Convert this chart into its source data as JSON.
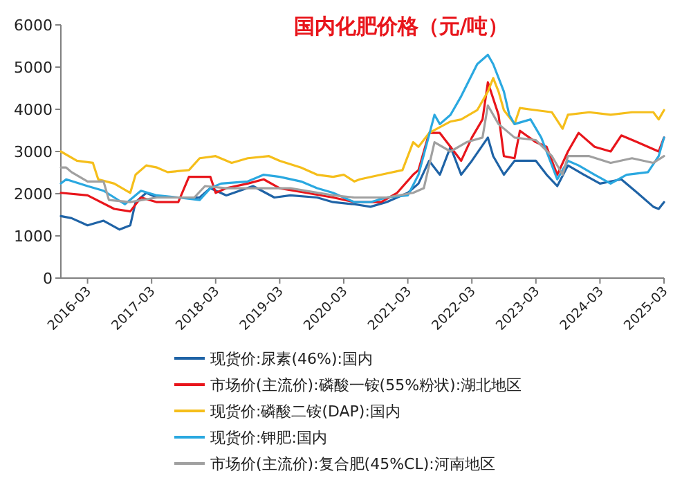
{
  "chart_data": {
    "type": "line",
    "title": "国内化肥价格（元/吨）",
    "xlim": [
      "2015-10",
      "2025-03"
    ],
    "ylim": [
      0,
      6000
    ],
    "yticks": [
      0,
      1000,
      2000,
      3000,
      4000,
      5000,
      6000
    ],
    "xticks": [
      "2016-03",
      "2017-03",
      "2018-03",
      "2019-03",
      "2020-03",
      "2021-03",
      "2022-03",
      "2023-03",
      "2024-03",
      "2025-03"
    ],
    "grid": false,
    "legend": "bottom",
    "series": [
      {
        "name": "现货价:尿素(46%):国内",
        "color": "#1f63a6",
        "x": [
          "2015-10",
          "2015-12",
          "2016-03",
          "2016-06",
          "2016-09",
          "2016-11",
          "2016-12",
          "2017-02",
          "2017-04",
          "2017-08",
          "2017-12",
          "2018-02",
          "2018-05",
          "2018-10",
          "2019-02",
          "2019-05",
          "2019-10",
          "2020-01",
          "2020-05",
          "2020-08",
          "2020-11",
          "2021-03",
          "2021-05",
          "2021-07",
          "2021-09",
          "2021-11",
          "2022-01",
          "2022-03",
          "2022-06",
          "2022-07",
          "2022-09",
          "2022-11",
          "2023-03",
          "2023-05",
          "2023-07",
          "2023-09",
          "2023-12",
          "2024-03",
          "2024-07",
          "2024-10",
          "2025-01",
          "2025-02",
          "2025-03"
        ],
        "values": [
          1470,
          1420,
          1250,
          1360,
          1150,
          1250,
          1800,
          2020,
          1910,
          1910,
          1910,
          2130,
          1960,
          2180,
          1910,
          1960,
          1910,
          1800,
          1750,
          1690,
          1800,
          2020,
          2240,
          2780,
          2450,
          3110,
          2450,
          2780,
          3330,
          2890,
          2450,
          2780,
          2780,
          2450,
          2180,
          2670,
          2450,
          2240,
          2340,
          2020,
          1690,
          1640,
          1800
        ]
      },
      {
        "name": "市场价(主流价):磷酸一铵(55%粉状):湖北地区",
        "color": "#e8151b",
        "x": [
          "2015-10",
          "2016-03",
          "2016-08",
          "2016-11",
          "2017-01",
          "2017-04",
          "2017-08",
          "2017-10",
          "2018-02",
          "2018-03",
          "2018-05",
          "2018-09",
          "2018-12",
          "2019-03",
          "2019-08",
          "2020-01",
          "2020-05",
          "2020-10",
          "2021-01",
          "2021-04",
          "2021-05",
          "2021-07",
          "2021-09",
          "2021-11",
          "2022-01",
          "2022-03",
          "2022-05",
          "2022-06",
          "2022-08",
          "2022-09",
          "2022-11",
          "2022-12",
          "2023-03",
          "2023-05",
          "2023-07",
          "2023-09",
          "2023-11",
          "2024-02",
          "2024-05",
          "2024-07",
          "2024-10",
          "2024-12",
          "2025-02",
          "2025-03"
        ],
        "values": [
          2020,
          1960,
          1640,
          1580,
          1910,
          1800,
          1800,
          2400,
          2400,
          2020,
          2130,
          2240,
          2340,
          2130,
          2020,
          1910,
          1800,
          1800,
          2020,
          2450,
          2560,
          3440,
          3440,
          3110,
          2780,
          3330,
          3760,
          4640,
          3870,
          2890,
          2840,
          3490,
          3220,
          3110,
          2450,
          3000,
          3440,
          3110,
          3000,
          3380,
          3220,
          3110,
          3000,
          3330
        ]
      },
      {
        "name": "现货价:磷酸二铵(DAP):国内",
        "color": "#f5be1a",
        "x": [
          "2015-10",
          "2016-01",
          "2016-04",
          "2016-05",
          "2016-08",
          "2016-11",
          "2016-12",
          "2017-02",
          "2017-04",
          "2017-06",
          "2017-10",
          "2017-12",
          "2018-03",
          "2018-06",
          "2018-09",
          "2019-01",
          "2019-03",
          "2019-07",
          "2019-10",
          "2020-01",
          "2020-03",
          "2020-05",
          "2020-06",
          "2020-10",
          "2021-02",
          "2021-04",
          "2021-05",
          "2021-07",
          "2021-11",
          "2022-01",
          "2022-04",
          "2022-06",
          "2022-07",
          "2022-08",
          "2022-09",
          "2022-11",
          "2022-12",
          "2023-03",
          "2023-06",
          "2023-08",
          "2023-09",
          "2024-01",
          "2024-05",
          "2024-09",
          "2025-01",
          "2025-02",
          "2025-03"
        ],
        "values": [
          3000,
          2780,
          2730,
          2340,
          2240,
          2020,
          2450,
          2670,
          2620,
          2510,
          2560,
          2840,
          2890,
          2730,
          2840,
          2890,
          2780,
          2620,
          2450,
          2400,
          2450,
          2290,
          2340,
          2450,
          2560,
          3220,
          3110,
          3440,
          3710,
          3760,
          3980,
          4420,
          4740,
          4420,
          3980,
          3650,
          4030,
          3980,
          3930,
          3540,
          3870,
          3930,
          3870,
          3930,
          3930,
          3760,
          3980
        ]
      },
      {
        "name": "现货价:钾肥:国内",
        "color": "#2aa8e0",
        "x": [
          "2015-10",
          "2015-11",
          "2016-03",
          "2016-06",
          "2016-10",
          "2017-01",
          "2017-04",
          "2017-08",
          "2017-12",
          "2018-02",
          "2018-04",
          "2018-09",
          "2018-12",
          "2019-03",
          "2019-07",
          "2019-10",
          "2020-01",
          "2020-05",
          "2020-08",
          "2020-11",
          "2021-03",
          "2021-05",
          "2021-08",
          "2021-09",
          "2021-11",
          "2022-01",
          "2022-04",
          "2022-06",
          "2022-07",
          "2022-09",
          "2022-10",
          "2022-11",
          "2023-02",
          "2023-04",
          "2023-07",
          "2023-09",
          "2023-11",
          "2024-02",
          "2024-05",
          "2024-08",
          "2024-12",
          "2025-02",
          "2025-03"
        ],
        "values": [
          2240,
          2340,
          2180,
          2070,
          1750,
          2070,
          1960,
          1910,
          1850,
          2130,
          2240,
          2290,
          2450,
          2400,
          2290,
          2130,
          2020,
          1800,
          1800,
          1910,
          1960,
          2450,
          3870,
          3650,
          3870,
          4310,
          5070,
          5290,
          5070,
          4420,
          3870,
          3650,
          3760,
          3330,
          2340,
          2780,
          2670,
          2450,
          2240,
          2450,
          2510,
          2890,
          3330
        ]
      },
      {
        "name": "市场价(主流价):复合肥(45%CL):河南地区",
        "color": "#a0a0a0",
        "x": [
          "2015-10",
          "2015-11",
          "2015-12",
          "2016-03",
          "2016-06",
          "2016-07",
          "2016-11",
          "2017-04",
          "2017-11",
          "2018-01",
          "2018-05",
          "2018-12",
          "2019-05",
          "2020-01",
          "2020-05",
          "2020-11",
          "2021-04",
          "2021-06",
          "2021-08",
          "2021-11",
          "2022-02",
          "2022-05",
          "2022-06",
          "2022-08",
          "2022-11",
          "2023-03",
          "2023-06",
          "2023-08",
          "2023-09",
          "2024-01",
          "2024-05",
          "2024-09",
          "2025-01",
          "2025-03"
        ],
        "values": [
          2620,
          2620,
          2510,
          2290,
          2290,
          1850,
          1800,
          1910,
          1910,
          2180,
          2130,
          2130,
          2130,
          1960,
          1910,
          1910,
          2020,
          2130,
          3220,
          3000,
          3220,
          3330,
          4090,
          3650,
          3330,
          3270,
          2890,
          2450,
          2890,
          2890,
          2730,
          2840,
          2730,
          2890
        ]
      }
    ]
  }
}
